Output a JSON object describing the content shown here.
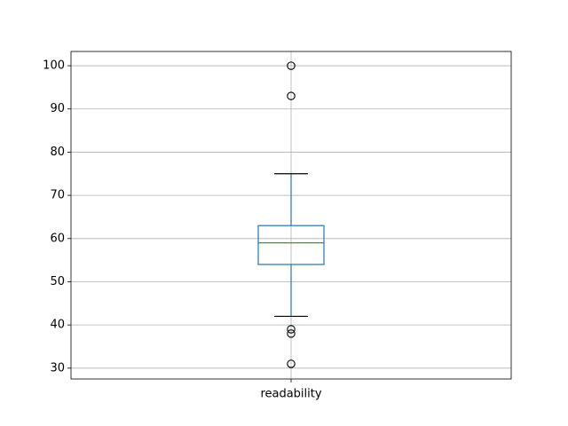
{
  "chart_data": {
    "type": "box",
    "categories": [
      "readability"
    ],
    "boxes": [
      {
        "whislo": 42,
        "q1": 54,
        "median": 59,
        "q3": 63,
        "whishi": 75,
        "fliers": [
          100,
          93,
          39,
          38,
          31
        ]
      }
    ],
    "box_color": "#1f77b4",
    "median_color": "#2ca02c",
    "whisker_cap_color": "#000000",
    "flier_color": "#000000",
    "ylim": [
      27.5,
      103.3
    ],
    "yticks": [
      30,
      40,
      50,
      60,
      70,
      80,
      90,
      100
    ],
    "grid": true
  }
}
